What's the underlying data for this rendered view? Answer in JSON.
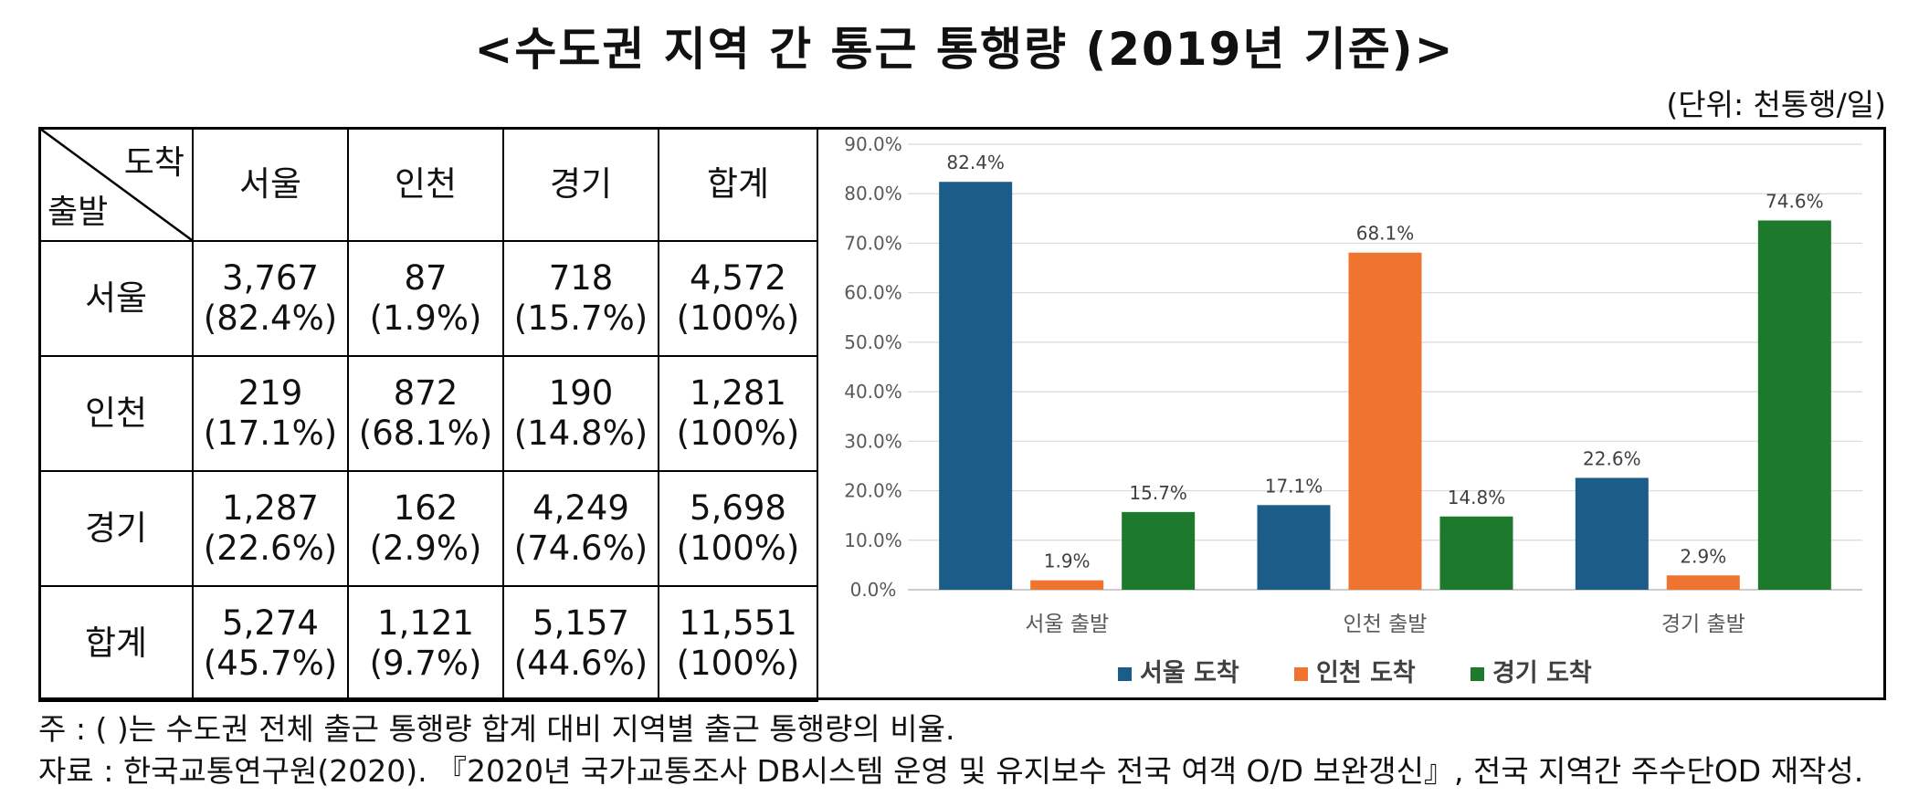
{
  "title": "<수도권 지역 간 통근 통행량 (2019년 기준)>",
  "unit": "(단위: 천통행/일)",
  "table": {
    "corner_arrival": "도착",
    "corner_departure": "출발",
    "columns": [
      "서울",
      "인천",
      "경기",
      "합계"
    ],
    "rows": [
      {
        "label": "서울",
        "cells": [
          {
            "v": "3,767",
            "p": "(82.4%)"
          },
          {
            "v": "87",
            "p": "(1.9%)"
          },
          {
            "v": "718",
            "p": "(15.7%)"
          },
          {
            "v": "4,572",
            "p": "(100%)"
          }
        ]
      },
      {
        "label": "인천",
        "cells": [
          {
            "v": "219",
            "p": "(17.1%)"
          },
          {
            "v": "872",
            "p": "(68.1%)"
          },
          {
            "v": "190",
            "p": "(14.8%)"
          },
          {
            "v": "1,281",
            "p": "(100%)"
          }
        ]
      },
      {
        "label": "경기",
        "cells": [
          {
            "v": "1,287",
            "p": "(22.6%)"
          },
          {
            "v": "162",
            "p": "(2.9%)"
          },
          {
            "v": "4,249",
            "p": "(74.6%)"
          },
          {
            "v": "5,698",
            "p": "(100%)"
          }
        ]
      },
      {
        "label": "합계",
        "cells": [
          {
            "v": "5,274",
            "p": "(45.7%)"
          },
          {
            "v": "1,121",
            "p": "(9.7%)"
          },
          {
            "v": "5,157",
            "p": "(44.6%)"
          },
          {
            "v": "11,551",
            "p": "(100%)"
          }
        ]
      }
    ]
  },
  "chart_data": {
    "type": "bar",
    "categories": [
      "서울 출발",
      "인천 출발",
      "경기 출발"
    ],
    "series": [
      {
        "name": "서울 도착",
        "color": "#1c5c88",
        "values": [
          82.4,
          17.1,
          22.6
        ],
        "labels": [
          "82.4%",
          "17.1%",
          "22.6%"
        ]
      },
      {
        "name": "인천 도착",
        "color": "#ef7430",
        "values": [
          1.9,
          68.1,
          2.9
        ],
        "labels": [
          "1.9%",
          "68.1%",
          "2.9%"
        ]
      },
      {
        "name": "경기 도착",
        "color": "#1d7a2c",
        "values": [
          15.7,
          14.8,
          74.6
        ],
        "labels": [
          "15.7%",
          "14.8%",
          "74.6%"
        ]
      }
    ],
    "ylim": [
      0,
      90
    ],
    "yticks": [
      "0.0%",
      "10.0%",
      "20.0%",
      "30.0%",
      "40.0%",
      "50.0%",
      "60.0%",
      "70.0%",
      "80.0%",
      "90.0%"
    ],
    "grid": true,
    "legend": "bottom-center"
  },
  "notes": {
    "note": "주 : (   )는 수도권 전체 출근 통행량 합계 대비 지역별 출근 통행량의 비율.",
    "source": "자료 : 한국교통연구원(2020). 『2020년 국가교통조사 DB시스템 운영 및 유지보수 전국 여객 O/D 보완갱신』, 전국 지역간 주수단OD 재작성."
  }
}
